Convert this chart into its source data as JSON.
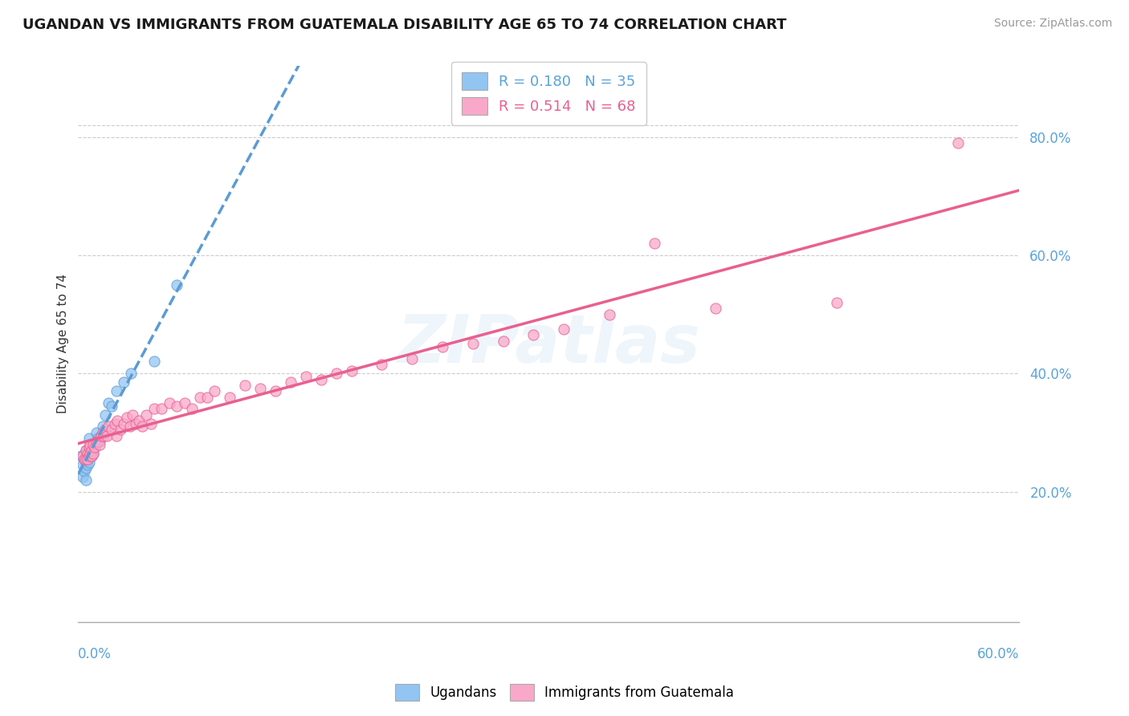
{
  "title": "UGANDAN VS IMMIGRANTS FROM GUATEMALA DISABILITY AGE 65 TO 74 CORRELATION CHART",
  "source": "Source: ZipAtlas.com",
  "xlabel_bottom_left": "0.0%",
  "xlabel_bottom_right": "60.0%",
  "ylabel": "Disability Age 65 to 74",
  "ylabel_right_labels": [
    "20.0%",
    "40.0%",
    "60.0%",
    "80.0%"
  ],
  "ylabel_right_values": [
    0.2,
    0.4,
    0.6,
    0.8
  ],
  "xlim": [
    0.0,
    0.62
  ],
  "ylim": [
    -0.02,
    0.92
  ],
  "watermark": "ZIPatlas",
  "legend_r1": "R = 0.180",
  "legend_n1": "N = 35",
  "legend_r2": "R = 0.514",
  "legend_n2": "N = 68",
  "color_ugandan": "#92C5F2",
  "color_guatemala": "#F9A8C9",
  "color_line_ugandan": "#5B9BD5",
  "color_line_guatemala": "#E86090",
  "background_color": "#ffffff",
  "grid_color": "#cccccc",
  "ugandan_x": [
    0.002,
    0.003,
    0.003,
    0.004,
    0.004,
    0.005,
    0.005,
    0.005,
    0.005,
    0.006,
    0.006,
    0.006,
    0.007,
    0.007,
    0.007,
    0.008,
    0.008,
    0.009,
    0.009,
    0.01,
    0.01,
    0.011,
    0.012,
    0.013,
    0.014,
    0.015,
    0.016,
    0.018,
    0.02,
    0.022,
    0.025,
    0.03,
    0.035,
    0.05,
    0.065
  ],
  "ugandan_y": [
    0.26,
    0.245,
    0.225,
    0.255,
    0.235,
    0.27,
    0.25,
    0.24,
    0.22,
    0.265,
    0.255,
    0.245,
    0.29,
    0.265,
    0.25,
    0.28,
    0.265,
    0.275,
    0.26,
    0.28,
    0.265,
    0.275,
    0.3,
    0.29,
    0.285,
    0.295,
    0.31,
    0.33,
    0.35,
    0.345,
    0.37,
    0.385,
    0.4,
    0.42,
    0.55
  ],
  "guatemala_x": [
    0.003,
    0.004,
    0.005,
    0.005,
    0.006,
    0.006,
    0.007,
    0.007,
    0.008,
    0.008,
    0.009,
    0.009,
    0.01,
    0.01,
    0.011,
    0.012,
    0.013,
    0.014,
    0.015,
    0.016,
    0.017,
    0.018,
    0.019,
    0.02,
    0.022,
    0.024,
    0.025,
    0.026,
    0.028,
    0.03,
    0.032,
    0.034,
    0.036,
    0.038,
    0.04,
    0.042,
    0.045,
    0.048,
    0.05,
    0.055,
    0.06,
    0.065,
    0.07,
    0.075,
    0.08,
    0.085,
    0.09,
    0.1,
    0.11,
    0.12,
    0.13,
    0.14,
    0.15,
    0.16,
    0.17,
    0.18,
    0.2,
    0.22,
    0.24,
    0.26,
    0.28,
    0.3,
    0.32,
    0.35,
    0.38,
    0.42,
    0.5,
    0.58
  ],
  "guatemala_y": [
    0.26,
    0.255,
    0.27,
    0.255,
    0.265,
    0.255,
    0.275,
    0.26,
    0.28,
    0.265,
    0.27,
    0.26,
    0.28,
    0.265,
    0.275,
    0.285,
    0.285,
    0.28,
    0.295,
    0.3,
    0.295,
    0.305,
    0.295,
    0.31,
    0.305,
    0.315,
    0.295,
    0.32,
    0.305,
    0.315,
    0.325,
    0.31,
    0.33,
    0.315,
    0.32,
    0.31,
    0.33,
    0.315,
    0.34,
    0.34,
    0.35,
    0.345,
    0.35,
    0.34,
    0.36,
    0.36,
    0.37,
    0.36,
    0.38,
    0.375,
    0.37,
    0.385,
    0.395,
    0.39,
    0.4,
    0.405,
    0.415,
    0.425,
    0.445,
    0.45,
    0.455,
    0.465,
    0.475,
    0.5,
    0.62,
    0.51,
    0.52,
    0.79
  ]
}
